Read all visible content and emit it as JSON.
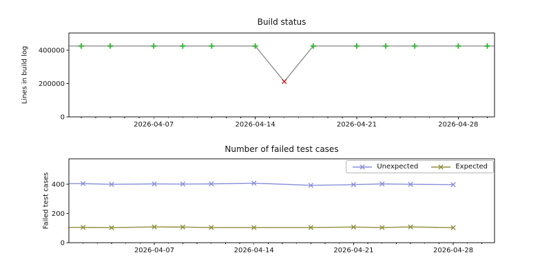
{
  "figure": {
    "background": "#ffffff"
  },
  "chart_data": [
    {
      "type": "line",
      "title": "Build status",
      "xlabel": "",
      "ylabel": "Lines in build log",
      "x": [
        "2026-04-02",
        "2026-04-04",
        "2026-04-07",
        "2026-04-09",
        "2026-04-11",
        "2026-04-14",
        "2026-04-16",
        "2026-04-18",
        "2026-04-21",
        "2026-04-23",
        "2026-04-25",
        "2026-04-28",
        "2026-04-30"
      ],
      "series": [
        {
          "name": "Lines in build log",
          "values": [
            425000,
            425000,
            425000,
            425000,
            425000,
            425000,
            212000,
            425000,
            425000,
            425000,
            425000,
            425000,
            425000
          ],
          "line_color": "#909090",
          "marker_default": {
            "shape": "plus",
            "color": "#2eb42e"
          },
          "marker_overrides": {
            "6": {
              "shape": "x",
              "color": "#cc2222"
            }
          },
          "enters_left": true,
          "exits_right": true
        }
      ],
      "ylim": [
        0,
        503000
      ],
      "yticks": [
        0,
        200000,
        400000
      ],
      "x_axis": {
        "lim_days": [
          1.15,
          30.5
        ],
        "major_days": [
          7,
          14,
          21,
          28
        ],
        "major_labels": [
          "2026-04-07",
          "2026-04-14",
          "2026-04-21",
          "2026-04-28"
        ],
        "minor_day_start": 2,
        "minor_day_end": 30
      },
      "grid": false,
      "legend": null
    },
    {
      "type": "line",
      "title": "Number of failed test cases",
      "xlabel": "",
      "ylabel": "Failed test cases",
      "x": [
        "2026-04-02",
        "2026-04-04",
        "2026-04-07",
        "2026-04-09",
        "2026-04-11",
        "2026-04-14",
        "2026-04-18",
        "2026-04-21",
        "2026-04-23",
        "2026-04-25",
        "2026-04-28"
      ],
      "series": [
        {
          "name": "Unexpected",
          "values": [
            405,
            400,
            403,
            402,
            403,
            408,
            393,
            398,
            403,
            400,
            398
          ],
          "line_color": "#8a8fd8",
          "marker_default": {
            "shape": "x",
            "color": "#8a8fd8"
          },
          "enters_left": true,
          "exits_right": false
        },
        {
          "name": "Expected",
          "values": [
            105,
            103,
            108,
            107,
            104,
            104,
            104,
            107,
            104,
            108,
            103
          ],
          "line_color": "#8e8e3e",
          "marker_default": {
            "shape": "x",
            "color": "#8e8e3e"
          },
          "enters_left": true,
          "exits_right": false
        }
      ],
      "ylim": [
        0,
        575
      ],
      "yticks": [
        0,
        200,
        400
      ],
      "x_axis": {
        "lim_days": [
          1.0,
          30.9
        ],
        "major_days": [
          7,
          14,
          21,
          28
        ],
        "major_labels": [
          "2026-04-07",
          "2026-04-14",
          "2026-04-21",
          "2026-04-28"
        ],
        "minor_day_start": 2,
        "minor_day_end": 30
      },
      "grid": false,
      "legend": {
        "entries": [
          "Unexpected",
          "Expected"
        ]
      }
    }
  ]
}
